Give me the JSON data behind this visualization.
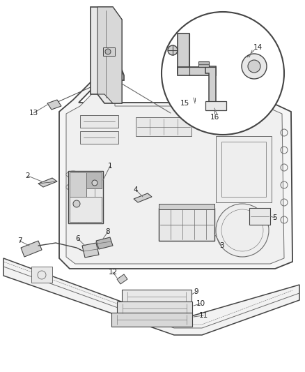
{
  "background_color": "#ffffff",
  "line_color": "#6a6a6a",
  "line_color_dark": "#444444",
  "text_color": "#222222",
  "figsize": [
    4.38,
    5.33
  ],
  "dpi": 100,
  "fill_light": "#e8e8e8",
  "fill_mid": "#d0d0d0",
  "fill_dark": "#b8b8b8"
}
